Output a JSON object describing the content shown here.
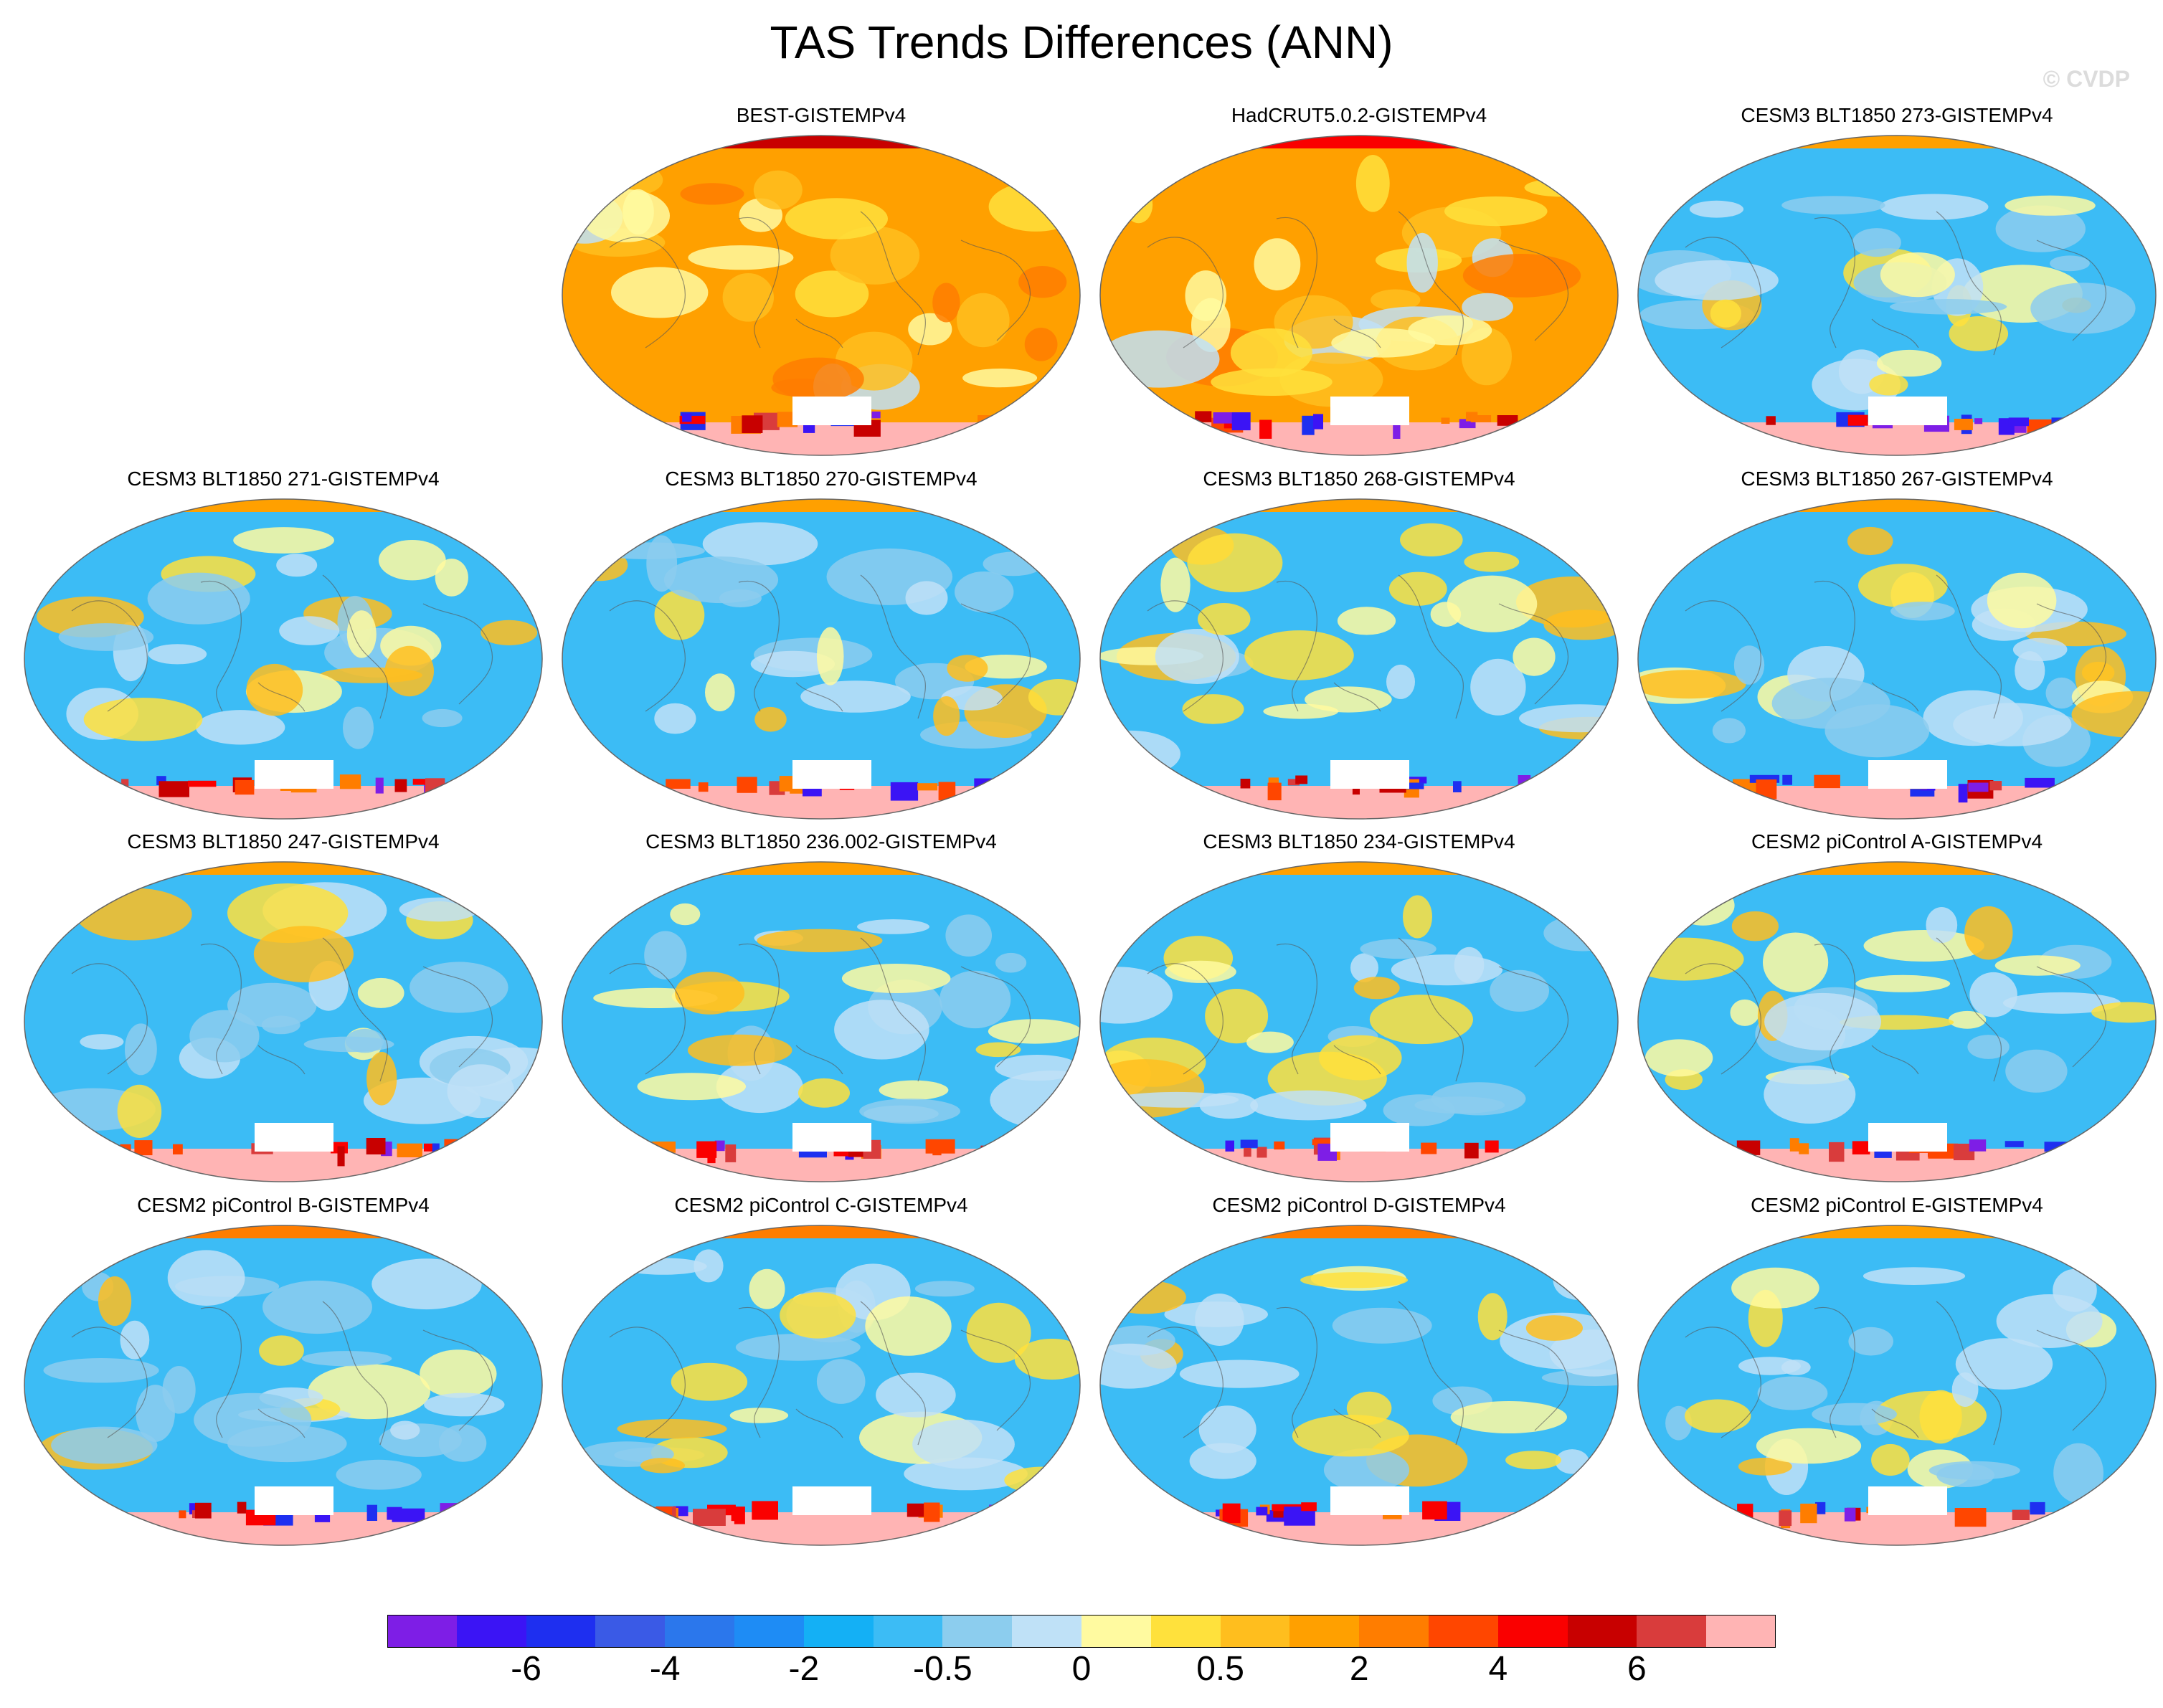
{
  "figure": {
    "title": "TAS Trends Differences (ANN)",
    "watermark": "© CVDP"
  },
  "chart_data": {
    "type": "heatmap",
    "title": "TAS Trends Differences (ANN)",
    "projection": "global map (elliptical)",
    "panels": [
      {
        "title": "BEST-GISTEMPv4",
        "row": 0,
        "col": 1,
        "base_level": 13,
        "north_cap_level": 17
      },
      {
        "title": "HadCRUT5.0.2-GISTEMPv4",
        "row": 0,
        "col": 2,
        "base_level": 13,
        "north_cap_level": 16
      },
      {
        "title": "CESM3 BLT1850 273-GISTEMPv4",
        "row": 0,
        "col": 3,
        "base_level": 7,
        "north_cap_level": 13
      },
      {
        "title": "CESM3 BLT1850 271-GISTEMPv4",
        "row": 1,
        "col": 0,
        "base_level": 7,
        "north_cap_level": 13
      },
      {
        "title": "CESM3 BLT1850 270-GISTEMPv4",
        "row": 1,
        "col": 1,
        "base_level": 7,
        "north_cap_level": 13
      },
      {
        "title": "CESM3 BLT1850 268-GISTEMPv4",
        "row": 1,
        "col": 2,
        "base_level": 7,
        "north_cap_level": 13
      },
      {
        "title": "CESM3 BLT1850 267-GISTEMPv4",
        "row": 1,
        "col": 3,
        "base_level": 7,
        "north_cap_level": 13
      },
      {
        "title": "CESM3 BLT1850 247-GISTEMPv4",
        "row": 2,
        "col": 0,
        "base_level": 7,
        "north_cap_level": 13
      },
      {
        "title": "CESM3 BLT1850 236.002-GISTEMPv4",
        "row": 2,
        "col": 1,
        "base_level": 7,
        "north_cap_level": 13
      },
      {
        "title": "CESM3 BLT1850 234-GISTEMPv4",
        "row": 2,
        "col": 2,
        "base_level": 7,
        "north_cap_level": 13
      },
      {
        "title": "CESM2 piControl A-GISTEMPv4",
        "row": 2,
        "col": 3,
        "base_level": 7,
        "north_cap_level": 13
      },
      {
        "title": "CESM2 piControl B-GISTEMPv4",
        "row": 3,
        "col": 0,
        "base_level": 7,
        "north_cap_level": 14
      },
      {
        "title": "CESM2 piControl C-GISTEMPv4",
        "row": 3,
        "col": 1,
        "base_level": 7,
        "north_cap_level": 14
      },
      {
        "title": "CESM2 piControl D-GISTEMPv4",
        "row": 3,
        "col": 2,
        "base_level": 7,
        "north_cap_level": 14
      },
      {
        "title": "CESM2 piControl E-GISTEMPv4",
        "row": 3,
        "col": 3,
        "base_level": 7,
        "north_cap_level": 13
      }
    ],
    "colorbar": {
      "colors": [
        "#7e1ee6",
        "#3b14f5",
        "#1e2ff0",
        "#3a5ae6",
        "#2b77ec",
        "#1e8cf5",
        "#14b0f5",
        "#3cbcf5",
        "#8ccdee",
        "#bfe1f7",
        "#fffaa0",
        "#ffe13c",
        "#ffbe1e",
        "#ffa000",
        "#ff7d00",
        "#ff4600",
        "#fa0000",
        "#c80000",
        "#d93c3c",
        "#ffb4b4"
      ],
      "tick_labels": [
        "-6",
        "-4",
        "-2",
        "-0.5",
        "0",
        "0.5",
        "2",
        "4",
        "6"
      ],
      "tick_boundaries": [
        2,
        4,
        6,
        8,
        10,
        12,
        14,
        16,
        18
      ]
    }
  }
}
